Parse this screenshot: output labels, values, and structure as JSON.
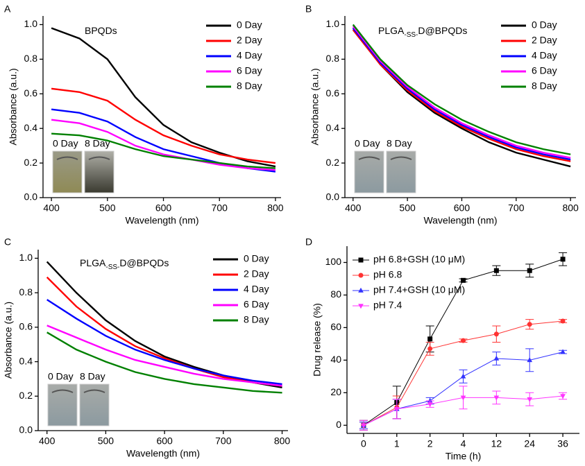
{
  "chart_data": [
    {
      "type": "line",
      "panel_label": "A",
      "title_parts": [
        "BPQDs"
      ],
      "xlabel": "Wavelength (nm)",
      "ylabel": "Absorbance (a.u.)",
      "x": [
        400,
        450,
        500,
        550,
        600,
        650,
        700,
        750,
        800
      ],
      "xlim": [
        385,
        810
      ],
      "xticks": [
        400,
        500,
        600,
        700,
        800
      ],
      "ylim": [
        0,
        1.05
      ],
      "yticks": [
        {
          "value": 0,
          "label": "0.0"
        },
        0.2,
        0.4,
        0.6,
        0.8,
        {
          "value": 1,
          "label": "1.0"
        }
      ],
      "legend": "upper right",
      "inset_labels": [
        "0 Day",
        "8 Day"
      ],
      "series": [
        {
          "name": "0 Day",
          "color": "#000000",
          "values": [
            0.98,
            0.92,
            0.8,
            0.58,
            0.42,
            0.32,
            0.26,
            0.21,
            0.18
          ]
        },
        {
          "name": "2 Day",
          "color": "#ff0000",
          "values": [
            0.63,
            0.61,
            0.56,
            0.45,
            0.36,
            0.3,
            0.25,
            0.22,
            0.2
          ]
        },
        {
          "name": "4 Day",
          "color": "#0000ff",
          "values": [
            0.51,
            0.49,
            0.44,
            0.35,
            0.28,
            0.24,
            0.2,
            0.17,
            0.15
          ]
        },
        {
          "name": "6 Day",
          "color": "#ff00ff",
          "values": [
            0.45,
            0.43,
            0.38,
            0.3,
            0.25,
            0.22,
            0.19,
            0.17,
            0.16
          ]
        },
        {
          "name": "8 Day",
          "color": "#008000",
          "values": [
            0.37,
            0.36,
            0.33,
            0.28,
            0.24,
            0.22,
            0.2,
            0.18,
            0.17
          ]
        }
      ]
    },
    {
      "type": "line",
      "panel_label": "B",
      "title_parts": [
        "PLGA",
        "-SS-",
        "D@BPQDs"
      ],
      "xlabel": "Wavelength (nm)",
      "ylabel": "Absorbance (a.u.)",
      "x": [
        400,
        450,
        500,
        550,
        600,
        650,
        700,
        750,
        800
      ],
      "xlim": [
        385,
        810
      ],
      "xticks": [
        400,
        500,
        600,
        700,
        800
      ],
      "ylim": [
        0,
        1.05
      ],
      "yticks": [
        {
          "value": 0,
          "label": "0.0"
        },
        0.2,
        0.4,
        0.6,
        0.8,
        {
          "value": 1,
          "label": "1.0"
        }
      ],
      "legend": "upper right",
      "inset_labels": [
        "0 Day",
        "8 Day"
      ],
      "series": [
        {
          "name": "0 Day",
          "color": "#000000",
          "values": [
            0.98,
            0.77,
            0.61,
            0.49,
            0.4,
            0.32,
            0.26,
            0.22,
            0.18
          ]
        },
        {
          "name": "2 Day",
          "color": "#ff0000",
          "values": [
            0.97,
            0.77,
            0.62,
            0.5,
            0.41,
            0.34,
            0.28,
            0.24,
            0.21
          ]
        },
        {
          "name": "4 Day",
          "color": "#0000ff",
          "values": [
            0.98,
            0.78,
            0.63,
            0.51,
            0.42,
            0.35,
            0.29,
            0.25,
            0.22
          ]
        },
        {
          "name": "6 Day",
          "color": "#ff00ff",
          "values": [
            0.99,
            0.79,
            0.64,
            0.52,
            0.43,
            0.36,
            0.3,
            0.26,
            0.23
          ]
        },
        {
          "name": "8 Day",
          "color": "#008000",
          "values": [
            1.0,
            0.8,
            0.65,
            0.54,
            0.45,
            0.38,
            0.32,
            0.28,
            0.25
          ]
        }
      ]
    },
    {
      "type": "line",
      "panel_label": "C",
      "title_parts": [
        "PLGA",
        "-SS-",
        "D@BPQDs"
      ],
      "xlabel": "Wavelength (nm)",
      "ylabel": "Absorbance (a.u.)",
      "x": [
        400,
        450,
        500,
        550,
        600,
        650,
        700,
        750,
        800
      ],
      "xlim": [
        385,
        810
      ],
      "xticks": [
        400,
        500,
        600,
        700,
        800
      ],
      "ylim": [
        0,
        1.05
      ],
      "yticks": [
        {
          "value": 0,
          "label": "0.0"
        },
        0.2,
        0.4,
        0.6,
        0.8,
        {
          "value": 1,
          "label": "1.0"
        }
      ],
      "legend": "upper right",
      "inset_labels": [
        "0 Day",
        "8 Day"
      ],
      "series": [
        {
          "name": "0 Day",
          "color": "#000000",
          "values": [
            0.98,
            0.8,
            0.64,
            0.52,
            0.43,
            0.37,
            0.32,
            0.28,
            0.25
          ]
        },
        {
          "name": "2 Day",
          "color": "#ff0000",
          "values": [
            0.89,
            0.72,
            0.59,
            0.49,
            0.42,
            0.36,
            0.31,
            0.28,
            0.26
          ]
        },
        {
          "name": "4 Day",
          "color": "#0000ff",
          "values": [
            0.76,
            0.65,
            0.55,
            0.47,
            0.41,
            0.36,
            0.32,
            0.29,
            0.27
          ]
        },
        {
          "name": "6 Day",
          "color": "#ff00ff",
          "values": [
            0.61,
            0.54,
            0.47,
            0.41,
            0.37,
            0.33,
            0.3,
            0.28,
            0.26
          ]
        },
        {
          "name": "8 Day",
          "color": "#008000",
          "values": [
            0.57,
            0.47,
            0.4,
            0.34,
            0.3,
            0.27,
            0.25,
            0.23,
            0.22
          ]
        }
      ]
    },
    {
      "type": "errorline",
      "panel_label": "D",
      "xlabel": "Time (h)",
      "ylabel": "Drug release (%)",
      "categories": [
        "0",
        "1",
        "2",
        "4",
        "12",
        "24",
        "36"
      ],
      "ylim": [
        -5,
        110
      ],
      "yticks": [
        0,
        20,
        40,
        60,
        80,
        100
      ],
      "legend": "upper left",
      "series": [
        {
          "name": "pH 6.8+GSH (10 μM)",
          "color": "#000000",
          "marker": "square",
          "values": [
            0,
            14,
            53,
            89,
            95,
            95,
            102
          ],
          "errors": [
            3,
            10,
            8,
            1,
            3,
            4,
            4
          ]
        },
        {
          "name": "pH 6.8",
          "color": "#ff3333",
          "marker": "circle",
          "values": [
            0,
            11,
            47,
            52,
            56,
            62,
            64
          ],
          "errors": [
            2,
            7,
            4,
            1,
            5,
            3,
            1
          ]
        },
        {
          "name": "pH 7.4+GSH (10 μM)",
          "color": "#3333ff",
          "marker": "triangle-up",
          "values": [
            0,
            10,
            15,
            30,
            41,
            40,
            45
          ],
          "errors": [
            2,
            6,
            2,
            4,
            4,
            7,
            1
          ]
        },
        {
          "name": "pH 7.4",
          "color": "#ff33ff",
          "marker": "triangle-down",
          "values": [
            0,
            10,
            13,
            17,
            17,
            16,
            18
          ],
          "errors": [
            3,
            6,
            2,
            7,
            4,
            4,
            2
          ]
        }
      ]
    }
  ]
}
